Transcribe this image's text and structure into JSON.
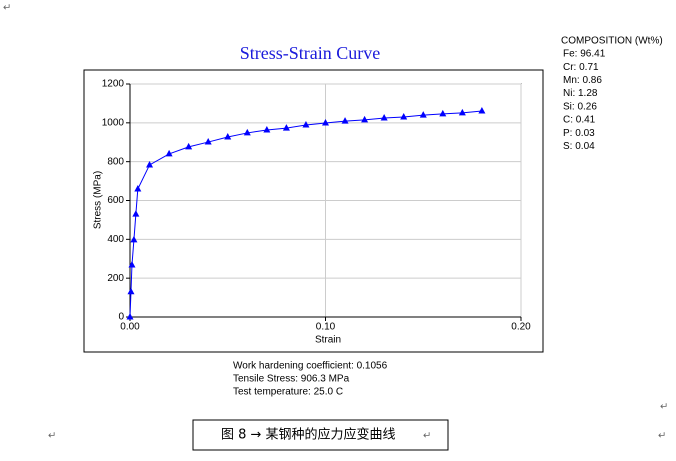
{
  "chart_data": {
    "type": "line",
    "title": "Stress-Strain Curve",
    "x_label": "Strain",
    "y_label": "Stress (MPa)",
    "x": [
      0,
      0.0005,
      0.001,
      0.002,
      0.003,
      0.004,
      0.01,
      0.02,
      0.03,
      0.04,
      0.05,
      0.06,
      0.07,
      0.08,
      0.09,
      0.1,
      0.11,
      0.12,
      0.13,
      0.14,
      0.15,
      0.16,
      0.17,
      0.18
    ],
    "series": [
      {
        "color": "#0000ff",
        "marker": "triangle",
        "values": [
          0,
          130,
          268,
          397,
          530,
          659,
          783,
          840,
          876,
          901,
          927,
          948,
          963,
          973,
          989,
          999,
          1009,
          1015,
          1025,
          1030,
          1040,
          1046,
          1051,
          1061
        ]
      }
    ],
    "xlim": [
      0,
      0.2
    ],
    "xticks": [
      {
        "value": 0,
        "label": "0.00"
      },
      {
        "value": 0.1,
        "label": "0.10"
      },
      {
        "value": 0.2,
        "label": "0.20"
      }
    ],
    "ylim": [
      0,
      1200
    ],
    "yticks": [
      0,
      200,
      400,
      600,
      800,
      1000,
      1200
    ],
    "grid": true
  },
  "composition": {
    "title": "COMPOSITION (Wt%)",
    "items": [
      "Fe: 96.41",
      "Cr: 0.71",
      "Mn: 0.86",
      "Ni: 1.28",
      "Si: 0.26",
      "C: 0.41",
      "P: 0.03",
      "S: 0.04"
    ]
  },
  "notes": [
    "Work hardening coefficient: 0.1056",
    "Tensile Stress: 906.3 MPa",
    "Test temperature: 25.0 C"
  ],
  "caption": "图 8 → 某钢种的应力应变曲线",
  "paragraph_mark": "↵"
}
